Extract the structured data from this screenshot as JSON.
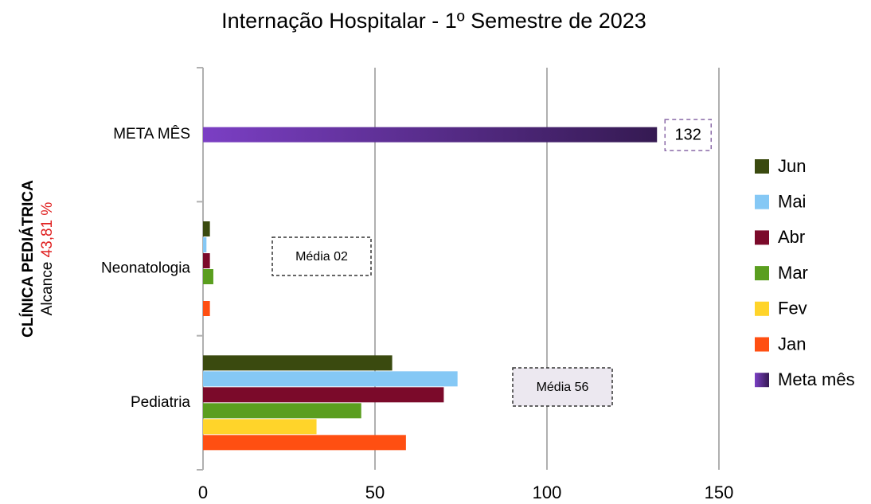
{
  "chart_data": {
    "type": "bar",
    "orientation": "horizontal",
    "title": "Internação Hospitalar - 1º Semestre de 2023",
    "side_label": {
      "title": "CLÍNICA PEDIÁTRICA",
      "prefix": "Alcance",
      "value": "43,81 %"
    },
    "categories": [
      "Pediatria",
      "Neonatologia",
      "META MÊS"
    ],
    "series": [
      {
        "name": "Jan",
        "color": "#ff4f12",
        "values": [
          59,
          2,
          null
        ]
      },
      {
        "name": "Fev",
        "color": "#ffd42a",
        "values": [
          33,
          0,
          null
        ]
      },
      {
        "name": "Mar",
        "color": "#5a9e1f",
        "values": [
          46,
          3,
          null
        ]
      },
      {
        "name": "Abr",
        "color": "#7b0a2a",
        "values": [
          70,
          2,
          null
        ]
      },
      {
        "name": "Mai",
        "color": "#85c8f5",
        "values": [
          74,
          1,
          null
        ]
      },
      {
        "name": "Jun",
        "color": "#3a4a0f",
        "values": [
          55,
          2,
          null
        ]
      },
      {
        "name": "Meta mês",
        "color": "#7b3fc4",
        "values": [
          null,
          null,
          132
        ]
      }
    ],
    "annotations": [
      "Média 02",
      "Média 56"
    ],
    "xlim": [
      0,
      150
    ],
    "xticks": [
      0,
      50,
      100,
      150
    ],
    "grid": true,
    "legend": "right"
  }
}
